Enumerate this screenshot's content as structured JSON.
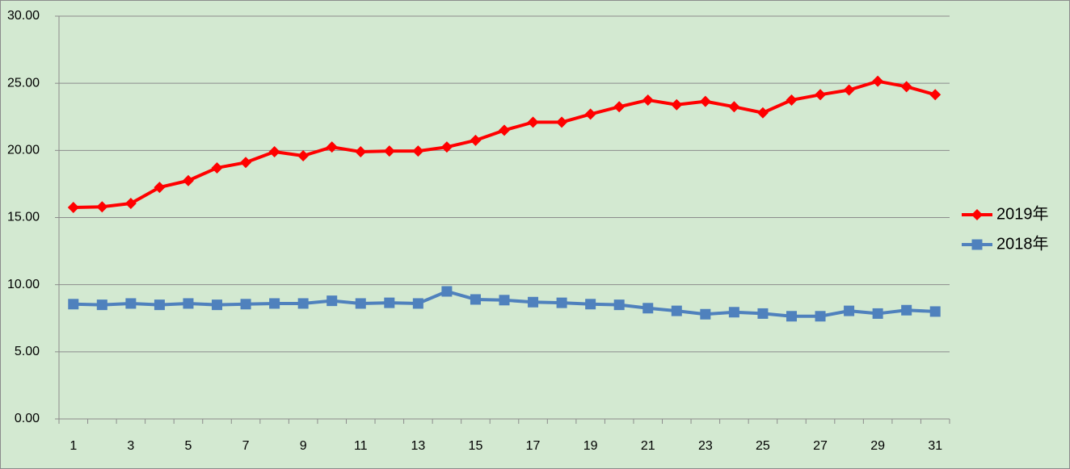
{
  "chart_data": {
    "type": "line",
    "categories": [
      1,
      null,
      3,
      null,
      5,
      null,
      7,
      null,
      9,
      null,
      11,
      null,
      13,
      null,
      15,
      null,
      17,
      null,
      19,
      null,
      21,
      null,
      23,
      null,
      25,
      null,
      27,
      null,
      29,
      null,
      31
    ],
    "series": [
      {
        "name": "2019年",
        "color": "#ff0000",
        "marker": "diamond",
        "values": [
          15.75,
          15.8,
          16.05,
          17.25,
          17.75,
          18.7,
          19.1,
          19.9,
          19.6,
          20.25,
          19.9,
          19.95,
          19.95,
          20.25,
          20.75,
          21.5,
          22.1,
          22.1,
          22.7,
          23.25,
          23.75,
          23.4,
          23.65,
          23.25,
          22.8,
          23.75,
          24.15,
          24.5,
          25.15,
          24.75,
          24.15
        ]
      },
      {
        "name": "2018年",
        "color": "#4f81bd",
        "marker": "square",
        "values": [
          8.55,
          8.5,
          8.6,
          8.5,
          8.6,
          8.5,
          8.55,
          8.6,
          8.6,
          8.8,
          8.6,
          8.65,
          8.6,
          9.5,
          8.9,
          8.85,
          8.7,
          8.65,
          8.55,
          8.5,
          8.25,
          8.05,
          7.8,
          7.95,
          7.85,
          7.65,
          7.65,
          8.05,
          7.85,
          8.1,
          8.0
        ]
      }
    ],
    "ylim": [
      0,
      30
    ],
    "yticks": [
      {
        "value": 0,
        "label": "0.00"
      },
      {
        "value": 5,
        "label": "5.00"
      },
      {
        "value": 10,
        "label": "10.00"
      },
      {
        "value": 15,
        "label": "15.00"
      },
      {
        "value": 20,
        "label": "20.00"
      },
      {
        "value": 25,
        "label": "25.00"
      },
      {
        "value": 30,
        "label": "30.00"
      }
    ],
    "grid": true,
    "legend": "right"
  }
}
